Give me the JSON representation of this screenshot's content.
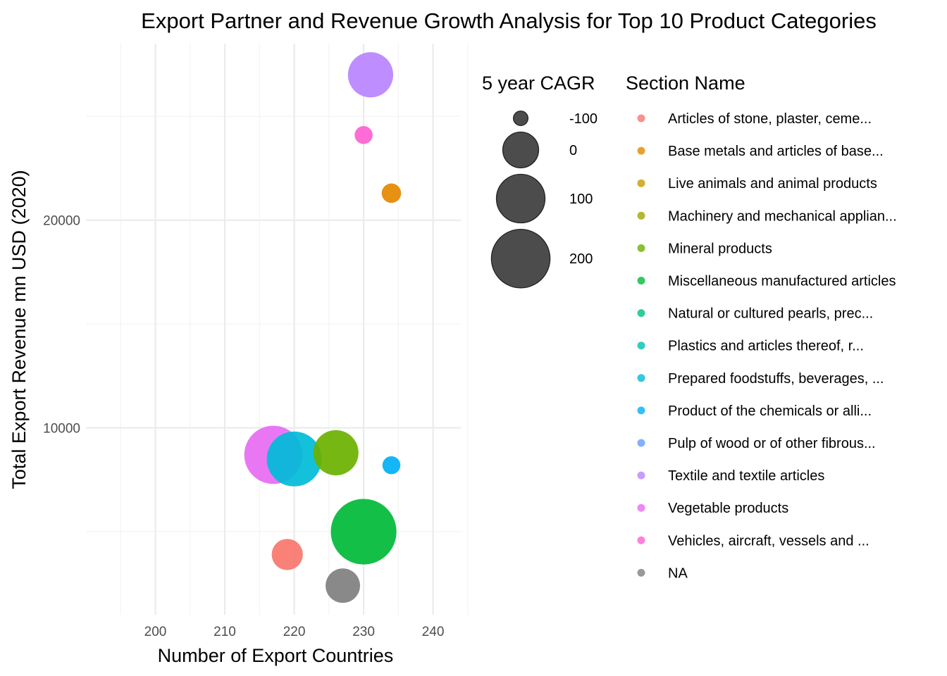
{
  "chart_data": {
    "type": "scatter",
    "title": "Export Partner and Revenue Growth Analysis for Top 10 Product Categories",
    "xlabel": "Number of Export Countries",
    "ylabel": "Total Export Revenue mn USD (2020)",
    "xlim": [
      190,
      244
    ],
    "ylim": [
      1000,
      28500
    ],
    "x_ticks": [
      200,
      210,
      220,
      230,
      240
    ],
    "x_tick_labels": [
      "200",
      "210",
      "220",
      "230",
      "240"
    ],
    "y_ticks": [
      10000,
      20000
    ],
    "y_tick_labels": [
      "10000",
      "20000"
    ],
    "grid": true,
    "size_legend": {
      "title": "5 year CAGR",
      "entries": [
        {
          "label": "-100",
          "value": -100
        },
        {
          "label": "0",
          "value": 0
        },
        {
          "label": "100",
          "value": 100
        },
        {
          "label": "200",
          "value": 200
        }
      ]
    },
    "color_legend": {
      "title": "Section Name",
      "entries": [
        {
          "label": "Articles of stone, plaster, ceme...",
          "color": "#F8766D"
        },
        {
          "label": "Base metals and articles of base...",
          "color": "#E58700"
        },
        {
          "label": "Live animals and animal products",
          "color": "#C99800"
        },
        {
          "label": "Machinery and mechanical applian...",
          "color": "#A3A500"
        },
        {
          "label": "Mineral products",
          "color": "#6BB100"
        },
        {
          "label": "Miscellaneous manufactured articles",
          "color": "#00BA38"
        },
        {
          "label": "Natural or cultured pearls, prec...",
          "color": "#00BF7D"
        },
        {
          "label": "Plastics and articles thereof, r...",
          "color": "#00C0AF"
        },
        {
          "label": "Prepared foodstuffs, beverages, ...",
          "color": "#00BCD8"
        },
        {
          "label": "Product of the chemicals or alli...",
          "color": "#00B0F6"
        },
        {
          "label": "Pulp of wood or of other fibrous...",
          "color": "#619CFF"
        },
        {
          "label": "Textile and textile articles",
          "color": "#B983FF"
        },
        {
          "label": "Vegetable products",
          "color": "#E76BF3"
        },
        {
          "label": "Vehicles, aircraft, vessels and ...",
          "color": "#FD61D1"
        },
        {
          "label": "NA",
          "color": "#7F7F7F"
        }
      ]
    },
    "points": [
      {
        "section": "Textile and textile articles",
        "x": 231,
        "y": 27000,
        "cagr": 70,
        "color": "#B983FF"
      },
      {
        "section": "Vehicles, aircraft, vessels and ...",
        "x": 230,
        "y": 24100,
        "cagr": -90,
        "color": "#FD61D1"
      },
      {
        "section": "Base metals and articles of base...",
        "x": 234,
        "y": 21300,
        "cagr": -85,
        "color": "#E58700"
      },
      {
        "section": "Vegetable products",
        "x": 217,
        "y": 8700,
        "cagr": 195,
        "color": "#E76BF3"
      },
      {
        "section": "Prepared foodstuffs, beverages, ...",
        "x": 220,
        "y": 8500,
        "cagr": 160,
        "color": "#00BCD8"
      },
      {
        "section": "Mineral products",
        "x": 226,
        "y": 8800,
        "cagr": 70,
        "color": "#6BB100"
      },
      {
        "section": "Product of the chemicals or alli...",
        "x": 234,
        "y": 8200,
        "cagr": -90,
        "color": "#00B0F6"
      },
      {
        "section": "Miscellaneous manufactured articles",
        "x": 230,
        "y": 5000,
        "cagr": 280,
        "color": "#00BA38"
      },
      {
        "section": "Articles of stone, plaster, ceme...",
        "x": 219,
        "y": 3900,
        "cagr": -30,
        "color": "#F8766D"
      },
      {
        "section": "NA",
        "x": 227,
        "y": 2400,
        "cagr": -10,
        "color": "#7F7F7F"
      }
    ]
  }
}
